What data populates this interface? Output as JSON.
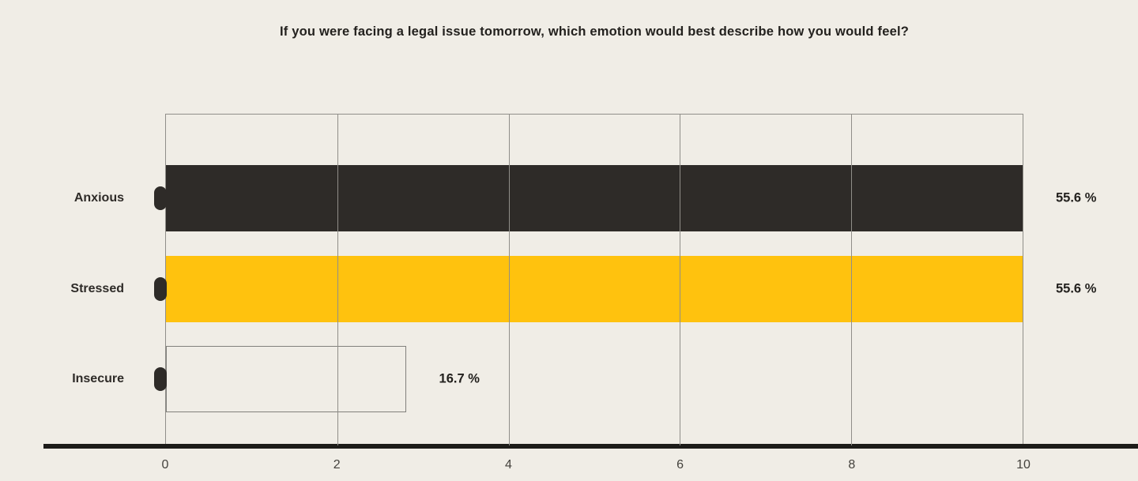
{
  "chart_data": {
    "type": "bar",
    "orientation": "horizontal",
    "title": "If you were facing a legal issue tomorrow, which emotion would best describe how you would feel?",
    "categories": [
      "Anxious",
      "Stressed",
      "Insecure"
    ],
    "values": [
      10,
      10,
      2.8
    ],
    "value_labels": [
      "55.6 %",
      "55.6 %",
      "16.7 %"
    ],
    "bar_fills": [
      "#2e2b28",
      "#ffc20e",
      "transparent"
    ],
    "bar_borders": [
      "none",
      "none",
      "#81807c"
    ],
    "marker_color": "#2e2b28",
    "xlabel": "",
    "ylabel": "",
    "xlim": [
      0,
      10
    ],
    "x_ticks": [
      "0",
      "2",
      "4",
      "6",
      "8",
      "10"
    ],
    "grid": true,
    "legend": false,
    "colors": {
      "background": "#f0ede6",
      "grid": "#908e89",
      "axis": "#1d1c19",
      "text": "#23211e"
    }
  }
}
